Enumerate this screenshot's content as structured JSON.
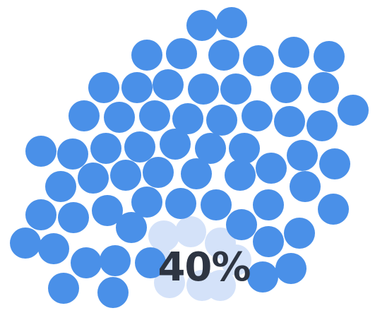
{
  "loader": {
    "progress_label": "40%",
    "progress_fraction": 0.4,
    "dot_color": "#4a90e8",
    "dot_faded_color": "#d4e2f9",
    "icon": "dot-cluster-progress-icon"
  }
}
